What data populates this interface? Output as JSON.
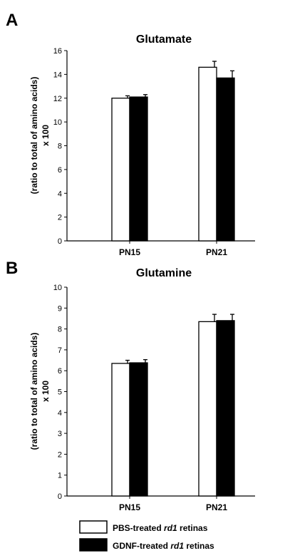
{
  "panels": [
    {
      "letter": "A",
      "title": "Glutamate",
      "ylabel_line1": "(ratio to total of amino acids)",
      "ylabel_line2": "x 100"
    },
    {
      "letter": "B",
      "title": "Glutamine",
      "ylabel_line1": "(ratio to total of amino acids)",
      "ylabel_line2": "x 100"
    }
  ],
  "legend": [
    {
      "prefix": "PBS-treated ",
      "italic": "rd1",
      "suffix": " retinas",
      "color": "#ffffff"
    },
    {
      "prefix": "GDNF-treated ",
      "italic": "rd1",
      "suffix": " retinas",
      "color": "#000000"
    }
  ],
  "chart_data": [
    {
      "type": "bar",
      "title": "Glutamate",
      "ylabel": "(ratio to total of amino acids) x 100",
      "categories": [
        "PN15",
        "PN21"
      ],
      "ylim": [
        0,
        16
      ],
      "yticks": [
        0,
        2,
        4,
        6,
        8,
        10,
        12,
        14,
        16
      ],
      "series": [
        {
          "name": "PBS-treated rd1 retinas",
          "color": "#ffffff",
          "values": [
            12.0,
            14.6
          ],
          "errors": [
            0.2,
            0.5
          ]
        },
        {
          "name": "GDNF-treated rd1 retinas",
          "color": "#000000",
          "values": [
            12.1,
            13.7
          ],
          "errors": [
            0.2,
            0.6
          ]
        }
      ]
    },
    {
      "type": "bar",
      "title": "Glutamine",
      "ylabel": "(ratio to total of amino acids) x 100",
      "categories": [
        "PN15",
        "PN21"
      ],
      "ylim": [
        0,
        10
      ],
      "yticks": [
        0,
        1,
        2,
        3,
        4,
        5,
        6,
        7,
        8,
        9,
        10
      ],
      "series": [
        {
          "name": "PBS-treated rd1 retinas",
          "color": "#ffffff",
          "values": [
            6.35,
            8.35
          ],
          "errors": [
            0.15,
            0.35
          ]
        },
        {
          "name": "GDNF-treated rd1 retinas",
          "color": "#000000",
          "values": [
            6.38,
            8.4
          ],
          "errors": [
            0.15,
            0.3
          ]
        }
      ]
    }
  ]
}
